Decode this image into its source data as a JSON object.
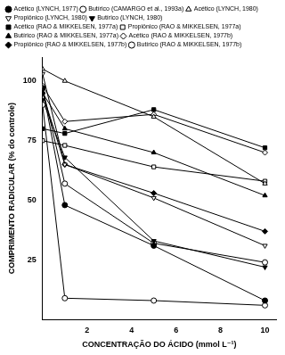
{
  "chart_data": {
    "type": "line",
    "x_label": "CONCENTRAÇÃO DO ÁCIDO (mmol L⁻¹)",
    "y_label": "COMPRIMENTO RADICULAR (% do controle)",
    "x": [
      0,
      1,
      5,
      10
    ],
    "xlim": [
      0,
      10.5
    ],
    "xticks": [
      2,
      4,
      6,
      8,
      10
    ],
    "ylim": [
      0,
      110
    ],
    "yticks": [
      25,
      50,
      75,
      100
    ],
    "grid": false,
    "legend": "top",
    "series": [
      {
        "name": "Acético (LYNCH, 1977)",
        "color": "#000000",
        "marker": "circle",
        "values": [
          97,
          48,
          31,
          8
        ]
      },
      {
        "name": "Butírico (CAMARGO et al., 1993a)",
        "color": "#000000",
        "marker": "open_circle",
        "values": [
          90,
          9,
          8,
          6
        ]
      },
      {
        "name": "Acético (LYNCH, 1980)",
        "color": "#000000",
        "marker": "open_triangle",
        "values": [
          105,
          100,
          85,
          57
        ]
      },
      {
        "name": "Propiônico (LYNCH, 1980)",
        "color": "#000000",
        "marker": "open_triangle_down",
        "values": [
          103,
          65,
          51,
          31
        ]
      },
      {
        "name": "Butírico (LYNCH, 1980)",
        "color": "#000000",
        "marker": "triangle_down",
        "values": [
          92,
          68,
          33,
          22
        ]
      },
      {
        "name": "Acético (RAO & MIKKELSEN, 1977a)",
        "color": "#000000",
        "marker": "square",
        "values": [
          80,
          78,
          88,
          72
        ]
      },
      {
        "name": "Propiônico (RAO & MIKKELSEN, 1977a)",
        "color": "#000000",
        "marker": "open_square",
        "values": [
          75,
          73,
          64,
          58
        ]
      },
      {
        "name": "Butírico (RAO & MIKKELSEN, 1977a)",
        "color": "#000000",
        "marker": "triangle",
        "values": [
          95,
          80,
          70,
          52
        ]
      },
      {
        "name": "Acético (RAO & MIKKELSEN, 1977b)",
        "color": "#000000",
        "marker": "open_diamond",
        "values": [
          98,
          83,
          86,
          70
        ]
      },
      {
        "name": "Propiônico (RAO & MIKKELSEN, 1977b)",
        "color": "#000000",
        "marker": "diamond",
        "values": [
          95,
          65,
          53,
          37
        ]
      },
      {
        "name": "Butírico (RAO & MIKKELSEN, 1977b)",
        "color": "#000000",
        "marker": "open_circle",
        "values": [
          97,
          57,
          32,
          24
        ]
      }
    ]
  }
}
